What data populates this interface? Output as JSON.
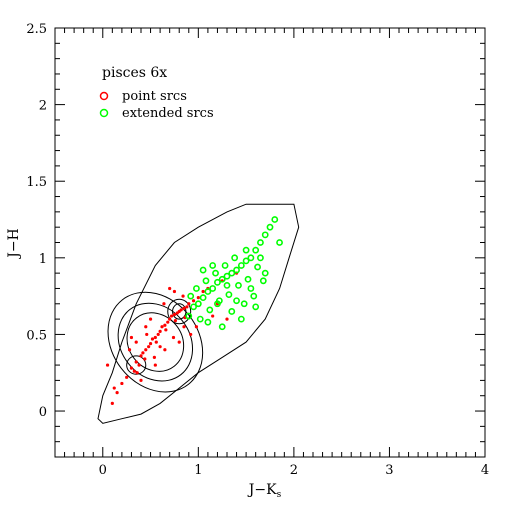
{
  "chart_data": {
    "type": "scatter",
    "title": "pisces 6x",
    "xlabel": "J−K",
    "xlabel_sub": "s",
    "ylabel": "J−H",
    "xlim": [
      -0.5,
      4
    ],
    "ylim": [
      -0.3,
      2.5
    ],
    "x_ticks": [
      "0",
      "1",
      "2",
      "3",
      "4"
    ],
    "y_ticks": [
      "0",
      "0.5",
      "1",
      "1.5",
      "2",
      "2.5"
    ],
    "legend_position": "top-left",
    "series": [
      {
        "name": "point srcs",
        "color": "#ff0000",
        "marker": "dot",
        "x": [
          0.3,
          0.35,
          0.4,
          0.45,
          0.5,
          0.55,
          0.6,
          0.65,
          0.7,
          0.75,
          0.8,
          0.85,
          0.9,
          0.38,
          0.42,
          0.48,
          0.52,
          0.58,
          0.62,
          0.68,
          0.72,
          0.78,
          0.82,
          0.88,
          0.25,
          0.33,
          0.44,
          0.56,
          0.66,
          0.76,
          0.86,
          0.95,
          1.0,
          1.05,
          1.1,
          0.2,
          0.15,
          0.1,
          0.98,
          1.15,
          1.2,
          0.28,
          0.36,
          0.46,
          0.54,
          0.64,
          0.74,
          0.84,
          0.92,
          0.6,
          0.5,
          0.4,
          0.7,
          0.8,
          1.25,
          1.3,
          0.05,
          0.12,
          1.4,
          0.3,
          0.55,
          0.65,
          0.75,
          0.85,
          0.45,
          0.35
        ],
        "y": [
          0.28,
          0.32,
          0.36,
          0.4,
          0.44,
          0.48,
          0.52,
          0.56,
          0.6,
          0.63,
          0.65,
          0.67,
          0.7,
          0.3,
          0.38,
          0.42,
          0.47,
          0.5,
          0.55,
          0.58,
          0.62,
          0.64,
          0.66,
          0.68,
          0.22,
          0.26,
          0.34,
          0.45,
          0.53,
          0.59,
          0.61,
          0.72,
          0.74,
          0.78,
          0.8,
          0.18,
          0.12,
          0.05,
          0.55,
          0.62,
          0.7,
          0.4,
          0.25,
          0.5,
          0.35,
          0.7,
          0.48,
          0.75,
          0.5,
          0.42,
          0.6,
          0.2,
          0.8,
          0.45,
          0.85,
          0.6,
          0.3,
          0.15,
          0.9,
          0.48,
          0.3,
          0.4,
          0.78,
          0.55,
          0.55,
          0.45
        ]
      },
      {
        "name": "extended srcs",
        "color": "#00ff00",
        "marker": "circle",
        "x": [
          0.9,
          0.95,
          1.0,
          1.05,
          1.1,
          1.15,
          1.2,
          1.25,
          1.3,
          1.35,
          1.4,
          1.45,
          1.5,
          1.55,
          1.6,
          1.65,
          1.7,
          1.02,
          1.12,
          1.22,
          1.32,
          1.42,
          1.52,
          1.62,
          0.98,
          1.08,
          1.18,
          1.28,
          1.38,
          1.48,
          1.58,
          1.68,
          1.75,
          1.8,
          1.85,
          1.25,
          1.35,
          1.45,
          1.15,
          1.05,
          1.55,
          1.65,
          0.92,
          1.2,
          1.4,
          1.3,
          1.5,
          1.1,
          1.6,
          1.7
        ],
        "y": [
          0.62,
          0.68,
          0.7,
          0.74,
          0.78,
          0.8,
          0.84,
          0.86,
          0.88,
          0.9,
          0.92,
          0.95,
          0.98,
          1.0,
          1.05,
          1.1,
          1.15,
          0.6,
          0.66,
          0.72,
          0.76,
          0.82,
          0.86,
          0.94,
          0.8,
          0.85,
          0.9,
          0.95,
          1.0,
          0.7,
          0.75,
          0.85,
          1.2,
          1.25,
          1.1,
          0.55,
          0.65,
          0.6,
          0.95,
          0.92,
          0.8,
          1.0,
          0.75,
          0.7,
          0.72,
          0.82,
          1.05,
          0.58,
          0.68,
          0.9
        ]
      }
    ]
  }
}
